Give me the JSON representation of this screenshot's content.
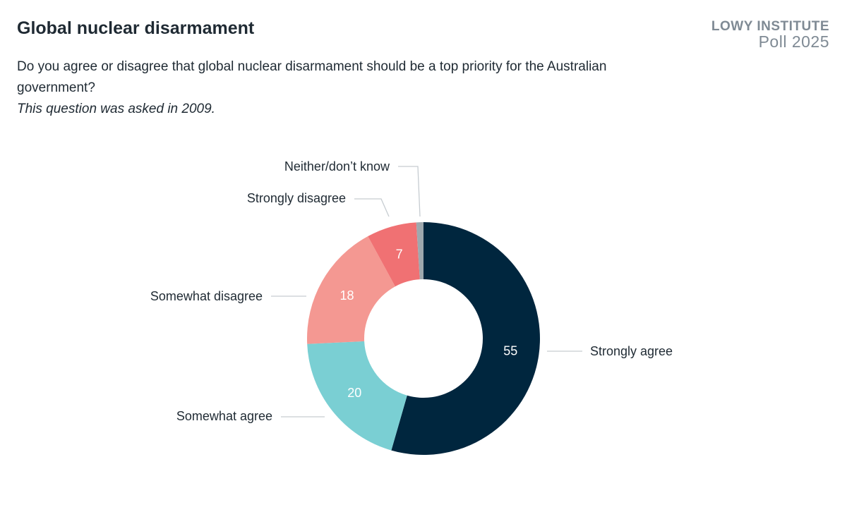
{
  "header": {
    "title": "Global nuclear disarmament",
    "question": "Do you agree or disagree that global nuclear disarmament should be a top priority for the Australian government?",
    "note": "This question was asked in 2009."
  },
  "logo": {
    "line1": "LOWY INSTITUTE",
    "line2": "Poll 2025"
  },
  "chart_data": {
    "type": "pie",
    "variant": "donut",
    "title": "",
    "start_angle": "12 o'clock, clockwise",
    "legend": "none (direct labels)",
    "slices": [
      {
        "label": "Strongly agree",
        "value": 55,
        "display": "55",
        "color": "#00263e"
      },
      {
        "label": "Somewhat agree",
        "value": 20,
        "display": "20",
        "color": "#7acfd3"
      },
      {
        "label": "Somewhat disagree",
        "value": 18,
        "display": "18",
        "color": "#f49892"
      },
      {
        "label": "Strongly disagree",
        "value": 7,
        "display": "7",
        "color": "#f07173"
      },
      {
        "label": "Neither/don’t know",
        "value": 1,
        "display": "",
        "color": "#9ea8ae"
      }
    ]
  }
}
